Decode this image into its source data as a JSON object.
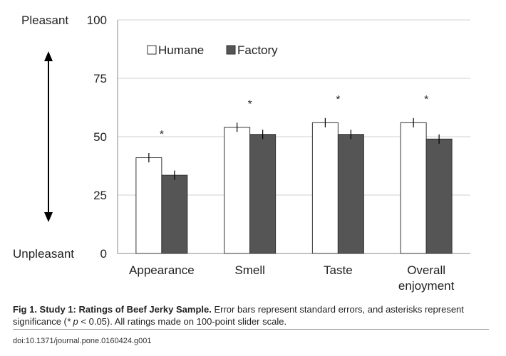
{
  "chart_data": {
    "type": "bar",
    "categories": [
      [
        "Appearance"
      ],
      [
        "Smell"
      ],
      [
        "Taste"
      ],
      [
        "Overall",
        "enjoyment"
      ]
    ],
    "series": [
      {
        "name": "Humane",
        "values": [
          41,
          54,
          56,
          56
        ],
        "errors": [
          2,
          2,
          2,
          2
        ],
        "color": "#ffffff"
      },
      {
        "name": "Factory",
        "values": [
          33.5,
          51,
          51,
          49
        ],
        "errors": [
          2,
          2,
          2,
          2
        ],
        "color": "#555555"
      }
    ],
    "significance": [
      "*",
      "*",
      "*",
      "*"
    ],
    "yticks": [
      0,
      25,
      50,
      75,
      100
    ],
    "ylim": [
      0,
      100
    ],
    "scale_high_label": "Pleasant",
    "scale_low_label": "Unpleasant",
    "grid": true,
    "legend_position": "top-left"
  },
  "caption": {
    "fig_label": "Fig 1. Study 1: Ratings of Beef Jerky Sample.",
    "text_part1": " Error bars represent standard errors, and asterisks represent significance (",
    "italic_p": "* p",
    "text_part2": " < 0.05). All ratings made on 100-point slider scale."
  },
  "doi": "doi:10.1371/journal.pone.0160424.g001"
}
